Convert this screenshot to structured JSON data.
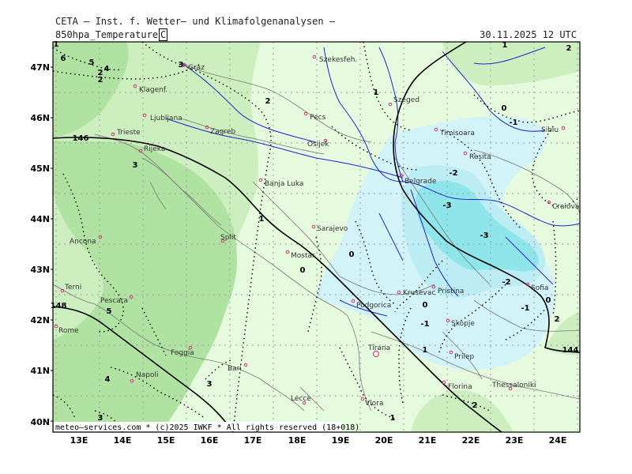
{
  "header": {
    "agency": "CETA – Inst. f. Wetter– und Klimafolgenanalysen –",
    "parameter": "850hpa_Temperature",
    "unit": "C",
    "valid_time": "30.11.2025 12 UTC"
  },
  "footer": {
    "credit": "meteo–services.com * (c)2025 IWKF * All rights reserved (18+018)"
  },
  "axes": {
    "lon_ticks": [
      "13E",
      "14E",
      "15E",
      "16E",
      "17E",
      "18E",
      "19E",
      "20E",
      "21E",
      "22E",
      "23E",
      "24E"
    ],
    "lat_ticks": [
      "47N",
      "46N",
      "45N",
      "44N",
      "43N",
      "42N",
      "41N",
      "40N"
    ]
  },
  "colors": {
    "band_ge4": "#b0e3a2",
    "band_2_4": "#cdefc0",
    "band_0_2": "#e6fbde",
    "band_m2_0": "#d2f4f8",
    "band_m4_m2": "#bcecf4",
    "band_lt_m4": "#8fe6ea",
    "river": "#2222cc",
    "city_marker": "#d0307a"
  },
  "cities": [
    {
      "name": "Szekesfeh."
    },
    {
      "name": "Graz"
    },
    {
      "name": "Klagenf."
    },
    {
      "name": "Ljubljana"
    },
    {
      "name": "Zagreb"
    },
    {
      "name": "Pecs"
    },
    {
      "name": "Szeged"
    },
    {
      "name": "Trieste"
    },
    {
      "name": "Rijeka"
    },
    {
      "name": "Osijek"
    },
    {
      "name": "Timisoara"
    },
    {
      "name": "Sibiu"
    },
    {
      "name": "Resita"
    },
    {
      "name": "Belgrade"
    },
    {
      "name": "Banja Luka"
    },
    {
      "name": "Craiova"
    },
    {
      "name": "Sarajevo"
    },
    {
      "name": "Split"
    },
    {
      "name": "Ancona"
    },
    {
      "name": "Mostar"
    },
    {
      "name": "Pristina"
    },
    {
      "name": "Sofia"
    },
    {
      "name": "Terni"
    },
    {
      "name": "Pescara"
    },
    {
      "name": "Podgorica"
    },
    {
      "name": "Krusevac"
    },
    {
      "name": "Skopje"
    },
    {
      "name": "Rome"
    },
    {
      "name": "Foggia"
    },
    {
      "name": "Tirana"
    },
    {
      "name": "Prilep"
    },
    {
      "name": "Bari"
    },
    {
      "name": "Napoli"
    },
    {
      "name": "Florina"
    },
    {
      "name": "Thessaloniki"
    },
    {
      "name": "Lecce"
    },
    {
      "name": "Vlora"
    }
  ],
  "contour_labels": [
    "6",
    "5",
    "4",
    "2",
    "2",
    "3",
    "2",
    "1",
    "1",
    "0",
    "-1",
    "-2",
    "-3",
    "-3",
    "-2",
    "-1",
    "0",
    "0",
    "-1",
    "0",
    "1",
    "2",
    "1",
    "3",
    "3",
    "4",
    "5",
    "3",
    "1",
    "2",
    "0",
    "1",
    "2",
    "146",
    "144",
    "148"
  ]
}
